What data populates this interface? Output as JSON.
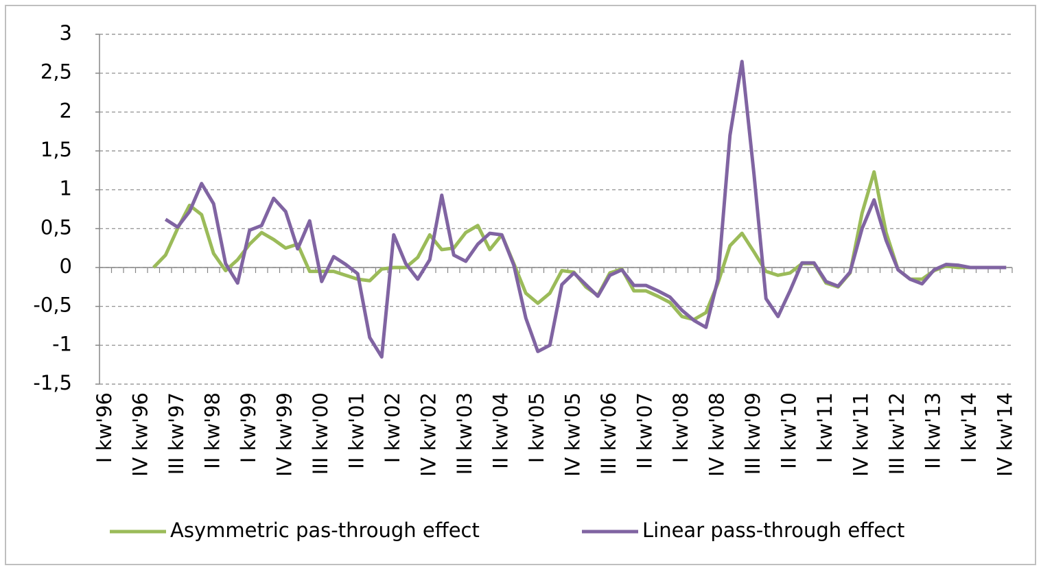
{
  "chart_data": {
    "type": "line",
    "categories": [
      "I kw'96",
      null,
      null,
      "IV kw'96",
      null,
      null,
      "III kw'97",
      null,
      null,
      "II kw'98",
      null,
      null,
      "I kw'99",
      null,
      null,
      "IV kw'99",
      null,
      null,
      "III kw'00",
      null,
      null,
      "II kw'01",
      null,
      null,
      "I kw'02",
      null,
      null,
      "IV kw'02",
      null,
      null,
      "III kw'03",
      null,
      null,
      "II kw'04",
      null,
      null,
      "I kw'05",
      null,
      null,
      "IV kw'05",
      null,
      null,
      "III kw'06",
      null,
      null,
      "II kw'07",
      null,
      null,
      "I kw'08",
      null,
      null,
      "IV kw'08",
      null,
      null,
      "III kw'09",
      null,
      null,
      "II kw'10",
      null,
      null,
      "I kw'11",
      null,
      null,
      "IV kw'11",
      null,
      null,
      "III kw'12",
      null,
      null,
      "II kw'13",
      null,
      null,
      "I kw'14",
      null,
      null,
      "IV kw'14"
    ],
    "series": [
      {
        "name": "Asymmetric pas-through effect",
        "color": "#9bbb59",
        "values": [
          null,
          null,
          null,
          null,
          0.0,
          0.16,
          0.5,
          0.8,
          0.68,
          0.18,
          -0.04,
          0.1,
          0.3,
          0.45,
          0.36,
          0.25,
          0.3,
          -0.05,
          -0.05,
          -0.05,
          -0.1,
          -0.15,
          -0.17,
          -0.02,
          0.0,
          0.0,
          0.13,
          0.42,
          0.23,
          0.25,
          0.45,
          0.54,
          0.23,
          0.42,
          0.05,
          -0.33,
          -0.46,
          -0.33,
          -0.04,
          -0.06,
          -0.25,
          -0.36,
          -0.07,
          -0.02,
          -0.3,
          -0.3,
          -0.37,
          -0.45,
          -0.63,
          -0.67,
          -0.58,
          -0.2,
          0.28,
          0.44,
          0.2,
          -0.05,
          -0.1,
          -0.07,
          0.05,
          0.05,
          -0.2,
          -0.25,
          -0.07,
          0.7,
          1.23,
          0.45,
          -0.03,
          -0.15,
          -0.15,
          -0.04,
          0.02,
          0.0,
          0.0,
          0.0,
          0.0,
          0.0
        ]
      },
      {
        "name": "Linear pass-through effect",
        "color": "#8064a2",
        "values": [
          null,
          null,
          null,
          null,
          null,
          0.62,
          0.52,
          0.72,
          1.08,
          0.82,
          0.05,
          -0.2,
          0.48,
          0.54,
          0.89,
          0.72,
          0.24,
          0.6,
          -0.18,
          0.14,
          0.04,
          -0.08,
          -0.9,
          -1.15,
          0.42,
          0.05,
          -0.15,
          0.1,
          0.93,
          0.16,
          0.08,
          0.3,
          0.44,
          0.42,
          0.03,
          -0.65,
          -1.08,
          -1.0,
          -0.22,
          -0.07,
          -0.22,
          -0.37,
          -0.1,
          -0.03,
          -0.23,
          -0.23,
          -0.3,
          -0.38,
          -0.55,
          -0.68,
          -0.77,
          -0.15,
          1.7,
          2.65,
          1.2,
          -0.4,
          -0.63,
          -0.3,
          0.06,
          0.06,
          -0.18,
          -0.24,
          -0.06,
          0.5,
          0.87,
          0.35,
          -0.03,
          -0.15,
          -0.21,
          -0.03,
          0.04,
          0.03,
          0.0,
          0.0,
          0.0,
          0.0
        ]
      }
    ],
    "ylim": [
      -1.5,
      3
    ],
    "yticks": [
      {
        "value": -1.5,
        "label": "-1,5"
      },
      -1,
      {
        "value": -0.5,
        "label": "-0,5"
      },
      0,
      {
        "value": 0.5,
        "label": "0,5"
      },
      1,
      {
        "value": 1.5,
        "label": "1,5"
      },
      2,
      {
        "value": 2.5,
        "label": "2,5"
      },
      3
    ],
    "grid": true,
    "legend": "bottom"
  }
}
